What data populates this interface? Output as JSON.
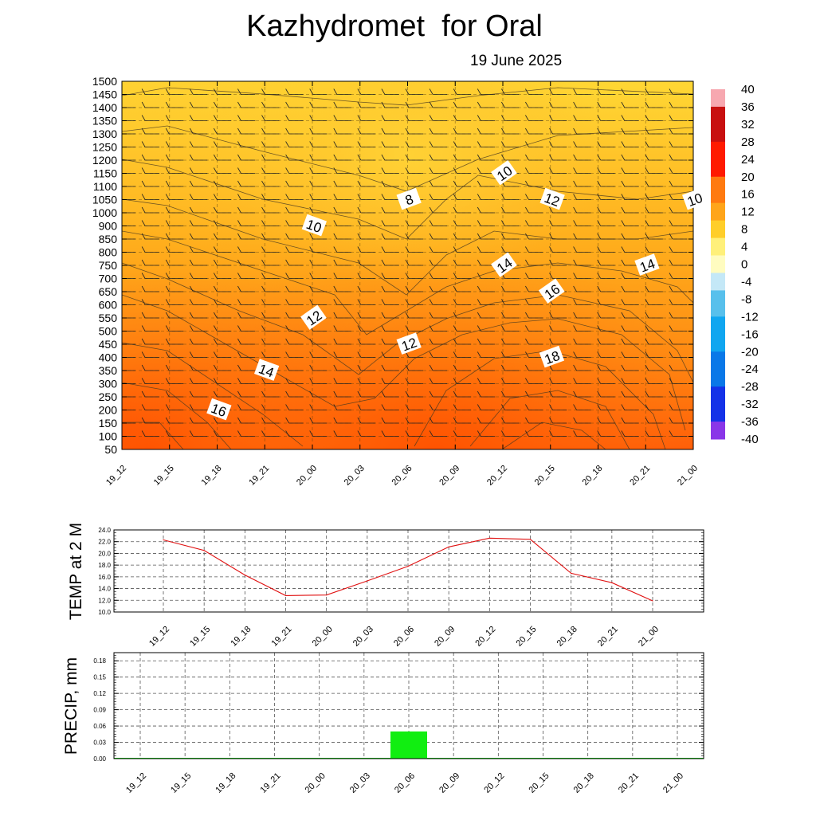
{
  "header": {
    "title": "Kazhydromet  for Oral",
    "date": "19 June 2025"
  },
  "chart_data": [
    {
      "type": "heatmap",
      "title": "",
      "xlabel": "",
      "ylabel": "",
      "x": [
        "19_12",
        "19_15",
        "19_18",
        "19_21",
        "20_00",
        "20_03",
        "20_06",
        "20_09",
        "20_12",
        "20_15",
        "20_18",
        "20_21",
        "21_00"
      ],
      "y_ticks": [
        50,
        100,
        150,
        200,
        250,
        300,
        350,
        400,
        450,
        500,
        550,
        600,
        650,
        700,
        750,
        800,
        850,
        900,
        1000,
        1050,
        1100,
        1150,
        1200,
        1250,
        1300,
        1350,
        1400,
        1450,
        1500
      ],
      "colorbar": {
        "ticks": [
          40,
          36,
          32,
          28,
          24,
          20,
          16,
          12,
          8,
          4,
          0,
          -4,
          -8,
          -12,
          -16,
          -20,
          -24,
          -28,
          -32,
          -36,
          -40
        ],
        "min": -40,
        "max": 40,
        "colors": {
          "40": "#f7a8b0",
          "32": "#c81010",
          "24": "#ff1a00",
          "16": "#ff7a10",
          "12": "#ffa51a",
          "8": "#ffce2a",
          "4": "#fff07a",
          "0": "#fffcc0",
          "-2": "#c4e8f7",
          "-8": "#58c0ec",
          "-16": "#10a6f0",
          "-24": "#0a78e8",
          "-32": "#1432e8",
          "-40": "#8a36e8"
        }
      },
      "contour_labels": [
        {
          "text": "8",
          "x": "20_06",
          "y": 1050
        },
        {
          "text": "10",
          "x": "20_00",
          "y": 900
        },
        {
          "text": "10",
          "x": "20_12",
          "y": 1150
        },
        {
          "text": "10",
          "x": "21_00",
          "y": 1050
        },
        {
          "text": "12",
          "x": "20_15",
          "y": 1050
        },
        {
          "text": "12",
          "x": "20_00",
          "y": 550
        },
        {
          "text": "12",
          "x": "20_06",
          "y": 450
        },
        {
          "text": "14",
          "x": "19_21",
          "y": 350
        },
        {
          "text": "14",
          "x": "20_12",
          "y": 750
        },
        {
          "text": "14",
          "x": "20_21",
          "y": 750
        },
        {
          "text": "16",
          "x": "19_18",
          "y": 200
        },
        {
          "text": "16",
          "x": "20_15",
          "y": 650
        },
        {
          "text": "18",
          "x": "20_15",
          "y": 400
        }
      ]
    },
    {
      "type": "line",
      "ylabel": "TEMP at 2 M",
      "x": [
        "19_12",
        "19_15",
        "19_18",
        "19_21",
        "20_00",
        "20_03",
        "20_06",
        "20_09",
        "20_12",
        "20_15",
        "20_18",
        "20_21",
        "21_00"
      ],
      "series": [
        {
          "color": "#e01010",
          "values": [
            22.3,
            20.5,
            16.3,
            12.8,
            12.9,
            15.3,
            17.8,
            21.1,
            22.6,
            22.4,
            16.6,
            15.0,
            11.9
          ]
        }
      ],
      "ylim": [
        10.0,
        24.0
      ],
      "y_ticks": [
        "10.0",
        "12.0",
        "14.0",
        "16.0",
        "18.0",
        "20.0",
        "22.0",
        "24.0"
      ],
      "grid": true
    },
    {
      "type": "bar",
      "ylabel": "PRECIP, mm",
      "x": [
        "19_12",
        "19_15",
        "19_18",
        "19_21",
        "20_00",
        "20_03",
        "20_06",
        "20_09",
        "20_12",
        "20_15",
        "20_18",
        "20_21",
        "21_00"
      ],
      "values": [
        0,
        0,
        0,
        0,
        0,
        0,
        0.05,
        0,
        0,
        0,
        0,
        0,
        0
      ],
      "bar_color": "#11ee11",
      "ylim": [
        0,
        0.195
      ],
      "y_ticks": [
        "0.00",
        "0.03",
        "0.06",
        "0.09",
        "0.12",
        "0.15",
        "0.18"
      ],
      "grid": true
    }
  ]
}
